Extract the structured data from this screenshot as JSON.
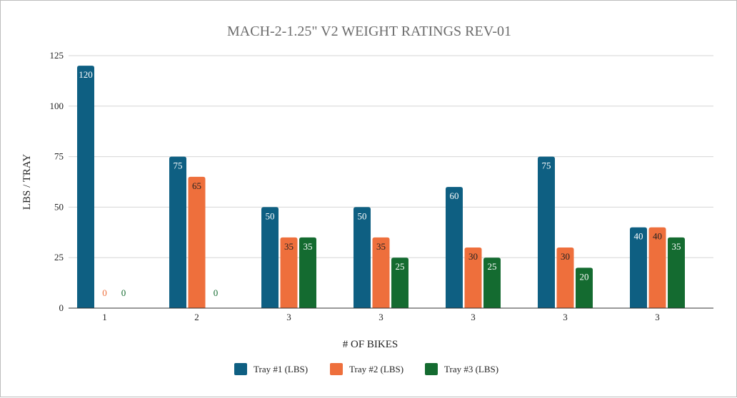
{
  "chart_data": {
    "type": "bar",
    "title": "MACH-2-1.25\" V2 WEIGHT RATINGS REV-01",
    "xlabel": "# OF BIKES",
    "ylabel": "LBS / TRAY",
    "categories": [
      "1",
      "2",
      "3",
      "3",
      "3",
      "3",
      "3"
    ],
    "ylim": [
      0,
      125
    ],
    "yticks": [
      0,
      25,
      50,
      75,
      100,
      125
    ],
    "grid": true,
    "legend_position": "bottom",
    "series": [
      {
        "name": "Tray #1 (LBS)",
        "color": "#0e5f82",
        "values": [
          120,
          75,
          50,
          50,
          60,
          75,
          40
        ]
      },
      {
        "name": "Tray #2 (LBS)",
        "color": "#ee6f3c",
        "values": [
          0,
          65,
          35,
          35,
          30,
          30,
          40
        ]
      },
      {
        "name": "Tray #3 (LBS)",
        "color": "#146b30",
        "values": [
          0,
          0,
          35,
          25,
          25,
          20,
          35
        ]
      }
    ]
  }
}
